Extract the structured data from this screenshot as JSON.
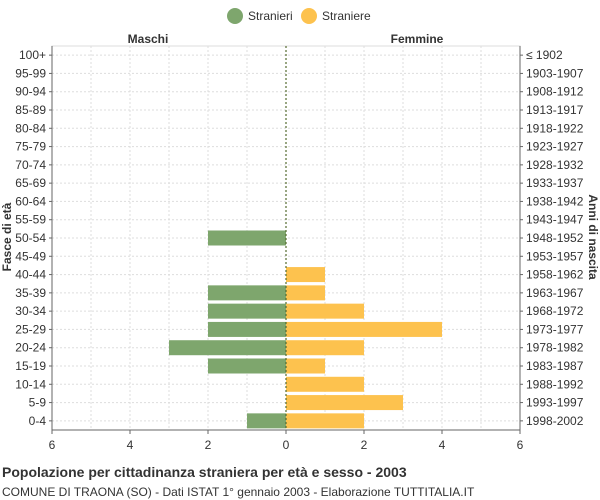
{
  "legend": {
    "stranieri": "Stranieri",
    "straniere": "Straniere"
  },
  "colors": {
    "male": "#7ea66d",
    "female": "#fdc24e",
    "grid": "#dddddd",
    "axis": "#666666",
    "center_line": "#556b2f"
  },
  "footer": {
    "title": "Popolazione per cittadinanza straniera per età e sesso - 2003",
    "subtitle": "COMUNE DI TRAONA (SO) - Dati ISTAT 1° gennaio 2003 - Elaborazione TUTTITALIA.IT"
  },
  "chart_data": {
    "type": "bar",
    "orientation": "horizontal-population-pyramid",
    "left_header": "Maschi",
    "right_header": "Femmine",
    "ylabel_left": "Fasce di età",
    "ylabel_right": "Anni di nascita",
    "xlim": [
      -6,
      6
    ],
    "x_ticks": [
      "6",
      "4",
      "2",
      "0",
      "2",
      "4",
      "6"
    ],
    "grid": true,
    "legend_position": "top-center",
    "categories": [
      "100+",
      "95-99",
      "90-94",
      "85-89",
      "80-84",
      "75-79",
      "70-74",
      "65-69",
      "60-64",
      "55-59",
      "50-54",
      "45-49",
      "40-44",
      "35-39",
      "30-34",
      "25-29",
      "20-24",
      "15-19",
      "10-14",
      "5-9",
      "0-4"
    ],
    "birth_years": [
      "≤ 1902",
      "1903-1907",
      "1908-1912",
      "1913-1917",
      "1918-1922",
      "1923-1927",
      "1928-1932",
      "1933-1937",
      "1938-1942",
      "1943-1947",
      "1948-1952",
      "1953-1957",
      "1958-1962",
      "1963-1967",
      "1968-1972",
      "1973-1977",
      "1978-1982",
      "1983-1987",
      "1988-1992",
      "1993-1997",
      "1998-2002"
    ],
    "series": [
      {
        "name": "Stranieri",
        "values": [
          0,
          0,
          0,
          0,
          0,
          0,
          0,
          0,
          0,
          0,
          2,
          0,
          0,
          2,
          2,
          2,
          3,
          2,
          0,
          0,
          1
        ]
      },
      {
        "name": "Straniere",
        "values": [
          0,
          0,
          0,
          0,
          0,
          0,
          0,
          0,
          0,
          0,
          0,
          0,
          1,
          1,
          2,
          4,
          2,
          1,
          2,
          3,
          2
        ]
      }
    ]
  }
}
